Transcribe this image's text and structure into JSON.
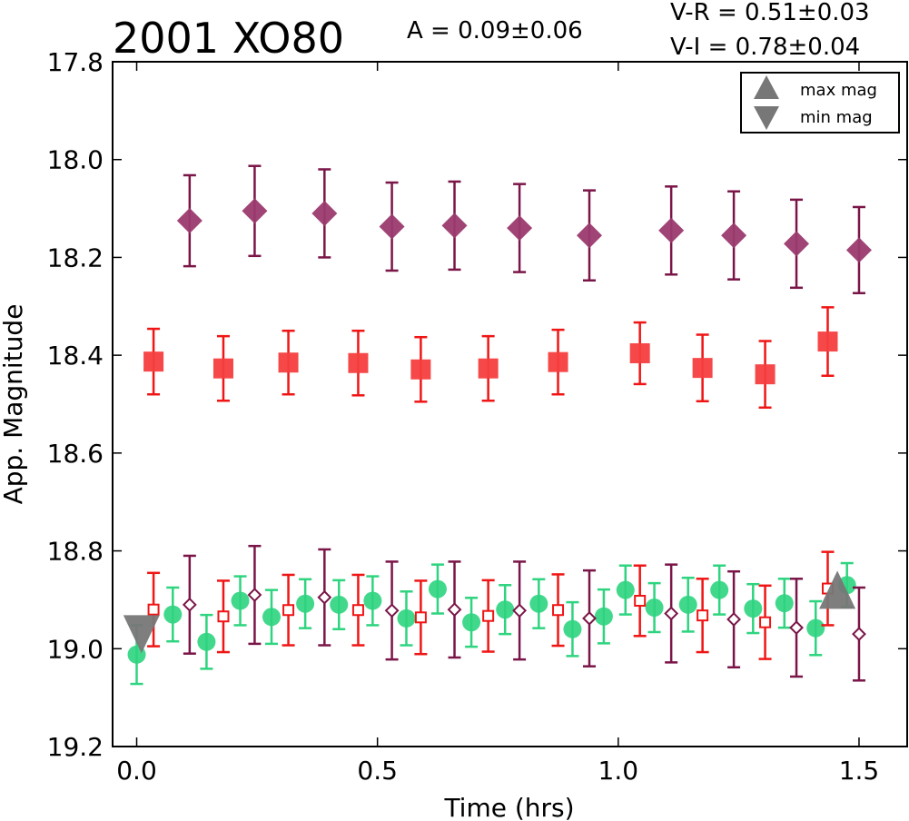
{
  "chart_data": {
    "type": "scatter",
    "title": "2001 XO80",
    "amplitude_text": "A  = 0.09±0.06",
    "colors_text": [
      "V-R = 0.51±0.03",
      "V-I  = 0.78±0.04"
    ],
    "xlabel": "Time (hrs)",
    "ylabel": "App. Magnitude",
    "xlim": [
      -0.05,
      1.6
    ],
    "ylim": [
      19.2,
      17.8
    ],
    "y_inverted": true,
    "xticks": [
      0.0,
      0.5,
      1.0,
      1.5
    ],
    "xtick_labels": [
      "0.0",
      "0.5",
      "1.0",
      "1.5"
    ],
    "yticks": [
      17.8,
      18.0,
      18.2,
      18.4,
      18.6,
      18.8,
      19.0,
      19.2
    ],
    "ytick_labels": [
      "17.8",
      "18.0",
      "18.2",
      "18.4",
      "18.6",
      "18.8",
      "19.0",
      "19.2"
    ],
    "grid": false,
    "legend": {
      "placement": "top-right",
      "entries": [
        {
          "label": "max mag",
          "marker": "triangle-up",
          "color": "#777777"
        },
        {
          "label": "min mag",
          "marker": "triangle-down",
          "color": "#777777"
        }
      ]
    },
    "series": [
      {
        "marker": "diamond-filled",
        "color": "#9b3a6f",
        "ecolor": "#7a1548",
        "x": [
          0.11,
          0.245,
          0.39,
          0.53,
          0.66,
          0.795,
          0.94,
          1.11,
          1.24,
          1.37,
          1.5
        ],
        "y": [
          18.125,
          18.105,
          18.11,
          18.137,
          18.135,
          18.14,
          18.155,
          18.145,
          18.155,
          18.172,
          18.185
        ],
        "yerr": [
          0.093,
          0.092,
          0.09,
          0.09,
          0.09,
          0.09,
          0.092,
          0.09,
          0.09,
          0.09,
          0.088
        ]
      },
      {
        "marker": "square-filled",
        "color": "#f53e3e",
        "ecolor": "#f01515",
        "x": [
          0.035,
          0.18,
          0.315,
          0.46,
          0.59,
          0.73,
          0.875,
          1.045,
          1.175,
          1.305,
          1.435
        ],
        "y": [
          18.413,
          18.427,
          18.415,
          18.416,
          18.429,
          18.427,
          18.414,
          18.396,
          18.426,
          18.439,
          18.372
        ],
        "yerr": [
          0.067,
          0.066,
          0.065,
          0.066,
          0.066,
          0.066,
          0.066,
          0.063,
          0.068,
          0.068,
          0.07
        ]
      },
      {
        "marker": "circle-filled",
        "color": "#2ed47f",
        "ecolor": "#2ed47f",
        "x": [
          0.0,
          0.075,
          0.145,
          0.215,
          0.28,
          0.35,
          0.42,
          0.49,
          0.56,
          0.625,
          0.695,
          0.765,
          0.835,
          0.905,
          0.97,
          1.015,
          1.075,
          1.145,
          1.21,
          1.28,
          1.345,
          1.41,
          1.475
        ],
        "y": [
          19.012,
          18.93,
          18.986,
          18.902,
          18.935,
          18.908,
          18.91,
          18.902,
          18.938,
          18.878,
          18.946,
          18.92,
          18.908,
          18.96,
          18.934,
          18.88,
          18.916,
          18.91,
          18.88,
          18.918,
          18.907,
          18.958,
          18.87
        ],
        "yerr": [
          0.06,
          0.055,
          0.055,
          0.05,
          0.055,
          0.05,
          0.05,
          0.05,
          0.055,
          0.05,
          0.05,
          0.05,
          0.05,
          0.055,
          0.055,
          0.05,
          0.05,
          0.055,
          0.05,
          0.05,
          0.05,
          0.055,
          0.045
        ]
      },
      {
        "marker": "square-open",
        "color": "#f01515",
        "ecolor": "#f01515",
        "x": [
          0.035,
          0.18,
          0.315,
          0.46,
          0.59,
          0.73,
          0.875,
          1.045,
          1.175,
          1.305,
          1.435
        ],
        "y": [
          18.92,
          18.934,
          18.921,
          18.921,
          18.936,
          18.933,
          18.921,
          18.902,
          18.932,
          18.946,
          18.877
        ],
        "yerr": [
          0.075,
          0.073,
          0.072,
          0.072,
          0.075,
          0.073,
          0.073,
          0.072,
          0.075,
          0.075,
          0.075
        ]
      },
      {
        "marker": "diamond-open",
        "color": "#7a1548",
        "ecolor": "#7a1548",
        "x": [
          0.11,
          0.245,
          0.39,
          0.53,
          0.66,
          0.795,
          0.94,
          1.11,
          1.24,
          1.37,
          1.5
        ],
        "y": [
          18.91,
          18.89,
          18.895,
          18.922,
          18.92,
          18.922,
          18.938,
          18.928,
          18.94,
          18.957,
          18.97
        ],
        "yerr": [
          0.1,
          0.1,
          0.098,
          0.1,
          0.098,
          0.1,
          0.098,
          0.1,
          0.098,
          0.1,
          0.095
        ]
      },
      {
        "marker": "triangle-down",
        "color": "#777777",
        "ecolor": "#777777",
        "x": [
          0.01
        ],
        "y": [
          18.965
        ],
        "yerr": [
          0
        ]
      },
      {
        "marker": "triangle-up",
        "color": "#777777",
        "ecolor": "#777777",
        "x": [
          1.455
        ],
        "y": [
          18.885
        ],
        "yerr": [
          0
        ]
      }
    ]
  }
}
